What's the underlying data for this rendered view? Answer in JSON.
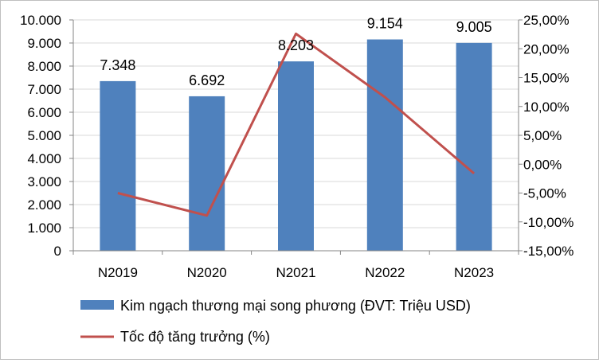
{
  "chart_data": {
    "type": "bar",
    "categories": [
      "N2019",
      "N2020",
      "N2021",
      "N2022",
      "N2023"
    ],
    "series": [
      {
        "name": "Kim ngạch thương mại song phương (ĐVT: Triệu USD)",
        "type": "bar",
        "axis": "left",
        "color": "#4f81bd",
        "values": [
          7348,
          6692,
          8203,
          9154,
          9005
        ],
        "data_labels": [
          "7.348",
          "6.692",
          "8.203",
          "9.154",
          "9.005"
        ]
      },
      {
        "name": "Tốc độ tăng trưởng (%)",
        "type": "line",
        "axis": "right",
        "color": "#c0504d",
        "values": [
          -5.0,
          -8.9,
          22.6,
          11.6,
          -1.6
        ]
      }
    ],
    "y_left": {
      "ylim": [
        0,
        10000
      ],
      "ticks": [
        0,
        1000,
        2000,
        3000,
        4000,
        5000,
        6000,
        7000,
        8000,
        9000,
        10000
      ],
      "tick_labels": [
        "0",
        "1.000",
        "2.000",
        "3.000",
        "4.000",
        "5.000",
        "6.000",
        "7.000",
        "8.000",
        "9.000",
        "10.000"
      ]
    },
    "y_right": {
      "ylim": [
        -15,
        25
      ],
      "ticks": [
        -15,
        -10,
        -5,
        0,
        5,
        10,
        15,
        20,
        25
      ],
      "tick_labels": [
        "-15,00%",
        "-10,00%",
        "-5,00%",
        "0,00%",
        "5,00%",
        "10,00%",
        "15,00%",
        "20,00%",
        "25,00%"
      ]
    },
    "grid": true,
    "legend": "bottom"
  }
}
